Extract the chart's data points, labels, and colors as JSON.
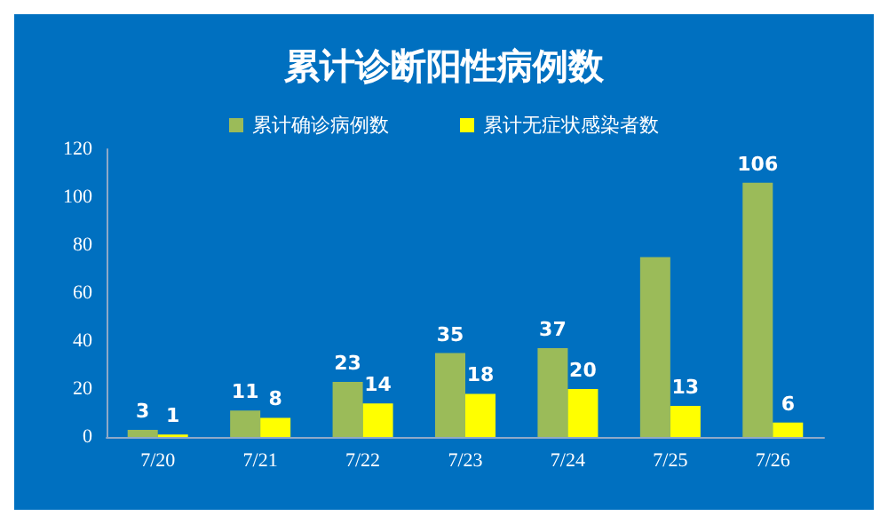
{
  "chart_data": {
    "type": "bar",
    "title": "累计诊断阳性病例数",
    "categories": [
      "7/20",
      "7/21",
      "7/22",
      "7/23",
      "7/24",
      "7/25",
      "7/26"
    ],
    "series": [
      {
        "name": "累计确诊病例数",
        "color": "#9bbb59",
        "values": [
          3,
          11,
          23,
          35,
          37,
          75,
          106
        ],
        "value_labels": [
          "3",
          "11",
          "23",
          "35",
          "37",
          null,
          "106"
        ]
      },
      {
        "name": "累计无症状感染者数",
        "color": "#ffff00",
        "values": [
          1,
          8,
          14,
          18,
          20,
          13,
          6
        ],
        "value_labels": [
          "1",
          "8",
          "14",
          "18",
          "20",
          "13",
          "6"
        ]
      }
    ],
    "ylim": [
      0,
      120
    ],
    "yticks": [
      0,
      20,
      40,
      60,
      80,
      100,
      120
    ],
    "grid": false,
    "legend": "top"
  }
}
